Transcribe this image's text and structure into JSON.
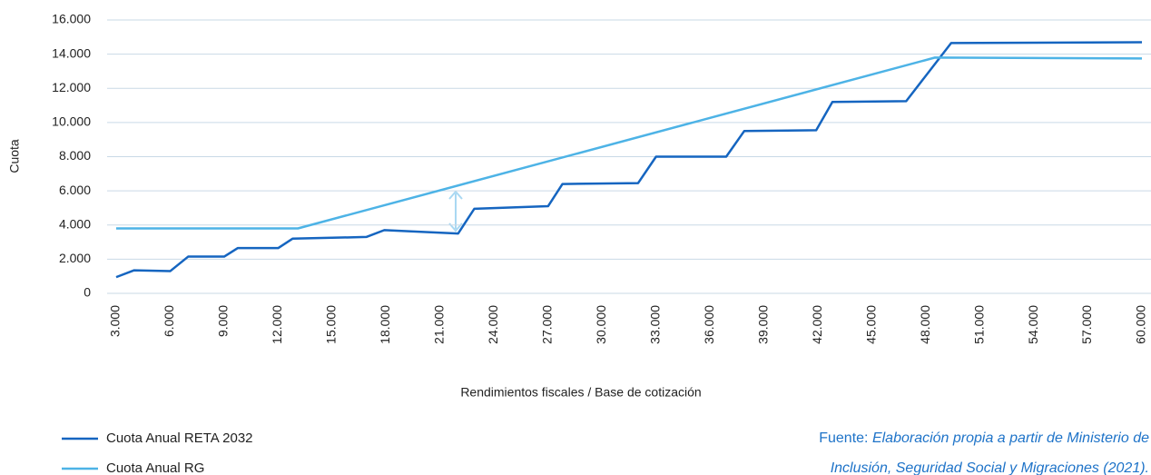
{
  "chart_data": {
    "type": "line",
    "y_label": "Cuota",
    "x_label": "Rendimientos fiscales / Base de cotización",
    "source": {
      "prefix": "Fuente:",
      "lines": [
        "Elaboración propia a partir de Ministerio de",
        "Inclusión, Seguridad Social y Migraciones (2021)."
      ]
    },
    "xlim": [
      3000,
      60000
    ],
    "xticks": [
      {
        "value": 3000,
        "label": "3.000"
      },
      {
        "value": 6000,
        "label": "6.000"
      },
      {
        "value": 9000,
        "label": "9.000"
      },
      {
        "value": 12000,
        "label": "12.000"
      },
      {
        "value": 15000,
        "label": "15.000"
      },
      {
        "value": 18000,
        "label": "18.000"
      },
      {
        "value": 21000,
        "label": "21.000"
      },
      {
        "value": 24000,
        "label": "24.000"
      },
      {
        "value": 27000,
        "label": "27.000"
      },
      {
        "value": 30000,
        "label": "30.000"
      },
      {
        "value": 33000,
        "label": "33.000"
      },
      {
        "value": 36000,
        "label": "36.000"
      },
      {
        "value": 39000,
        "label": "39.000"
      },
      {
        "value": 42000,
        "label": "42.000"
      },
      {
        "value": 45000,
        "label": "45.000"
      },
      {
        "value": 48000,
        "label": "48.000"
      },
      {
        "value": 51000,
        "label": "51.000"
      },
      {
        "value": 54000,
        "label": "54.000"
      },
      {
        "value": 57000,
        "label": "57.000"
      },
      {
        "value": 60000,
        "label": "60.000"
      }
    ],
    "ylim": [
      0,
      16000
    ],
    "yticks": [
      0,
      {
        "value": 2000,
        "label": "2.000"
      },
      {
        "value": 4000,
        "label": "4.000"
      },
      {
        "value": 6000,
        "label": "6.000"
      },
      {
        "value": 8000,
        "label": "8.000"
      },
      {
        "value": 10000,
        "label": "10.000"
      },
      {
        "value": 12000,
        "label": "12.000"
      },
      {
        "value": 14000,
        "label": "14.000"
      },
      {
        "value": 16000,
        "label": "16.000"
      }
    ],
    "grid": true,
    "legend": "bottom-left",
    "series": [
      {
        "name": "Cuota Anual RETA 2032",
        "color": "#1565c0",
        "x": [
          3000,
          4000,
          6000,
          7000,
          9000,
          9750,
          12000,
          12800,
          16900,
          17900,
          22000,
          22900,
          27000,
          27800,
          32000,
          33000,
          36900,
          37900,
          41900,
          42800,
          46900,
          49400,
          60000
        ],
        "values": [
          950,
          1350,
          1300,
          2150,
          2150,
          2650,
          2650,
          3200,
          3300,
          3700,
          3500,
          4950,
          5100,
          6400,
          6450,
          8000,
          8000,
          9500,
          9550,
          11200,
          11250,
          14650,
          14700
        ]
      },
      {
        "name": "Cuota Anual RG",
        "color": "#4db3e6",
        "x": [
          3000,
          13100,
          48500,
          60000
        ],
        "values": [
          3800,
          3800,
          13800,
          13750
        ]
      }
    ]
  }
}
